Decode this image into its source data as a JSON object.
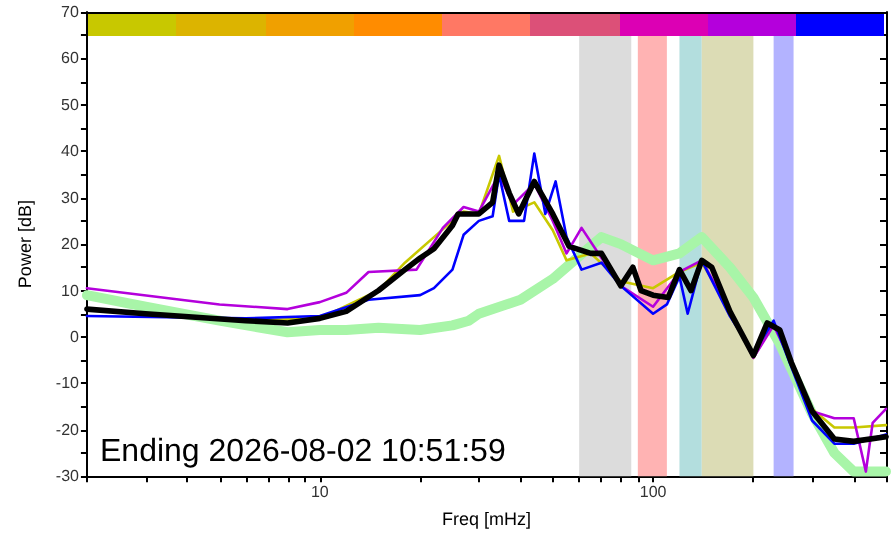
{
  "chart_data": {
    "type": "line",
    "xlabel": "Freq [mHz]",
    "ylabel": "Power [dB]",
    "log": "x",
    "xlim": [
      2,
      500
    ],
    "ylim": [
      -30,
      70
    ],
    "xticks": [
      {
        "value": 2,
        "label": null
      },
      {
        "value": 3,
        "label": null
      },
      {
        "value": 4,
        "label": null
      },
      {
        "value": 5,
        "label": null
      },
      {
        "value": 6,
        "label": null
      },
      {
        "value": 7,
        "label": null
      },
      {
        "value": 8,
        "label": null
      },
      {
        "value": 9,
        "label": null
      },
      10,
      {
        "value": 20,
        "label": null
      },
      {
        "value": 30,
        "label": null
      },
      {
        "value": 40,
        "label": null
      },
      {
        "value": 50,
        "label": null
      },
      {
        "value": 60,
        "label": null
      },
      {
        "value": 70,
        "label": null
      },
      {
        "value": 80,
        "label": null
      },
      {
        "value": 90,
        "label": null
      },
      100,
      {
        "value": 200,
        "label": null
      },
      {
        "value": 300,
        "label": null
      },
      {
        "value": 400,
        "label": null
      },
      {
        "value": 500,
        "label": null
      }
    ],
    "yticks": [
      -30,
      {
        "value": -25,
        "label": null
      },
      -20,
      {
        "value": -15,
        "label": null
      },
      -10,
      {
        "value": -5,
        "label": null
      },
      0,
      {
        "value": 5,
        "label": null
      },
      10,
      {
        "value": 15,
        "label": null
      },
      20,
      {
        "value": 25,
        "label": null
      },
      30,
      {
        "value": 35,
        "label": null
      },
      40,
      {
        "value": 45,
        "label": null
      },
      50,
      {
        "value": 55,
        "label": null
      },
      60,
      {
        "value": 65,
        "label": null
      },
      70
    ],
    "grid": false,
    "marker": "none",
    "line_style": "solid",
    "annotations": [
      "Ending 2026-08-02 10:51:59"
    ],
    "bands": [
      {
        "axis": "x",
        "from": 60,
        "to": 86,
        "color": "#dcdcdc"
      },
      {
        "axis": "x",
        "from": 90,
        "to": 110,
        "color": "#ffb3b3"
      },
      {
        "axis": "x",
        "from": 120,
        "to": 140,
        "color": "#b3dede"
      },
      {
        "axis": "x",
        "from": 140,
        "to": 200,
        "color": "#dcdcb5"
      },
      {
        "axis": "x",
        "from": 230,
        "to": 264,
        "color": "#b3b3ff"
      }
    ],
    "series": [
      {
        "color": "#a8f5a8",
        "x": [
          2,
          3,
          5,
          8,
          10,
          12,
          15,
          20,
          25,
          28,
          30,
          40,
          50,
          58,
          70,
          80,
          100,
          120,
          140,
          170,
          200,
          240,
          300,
          350,
          400,
          500
        ],
        "values": [
          9,
          6.5,
          3.5,
          1,
          1.5,
          1.5,
          2,
          1.5,
          2.5,
          3.5,
          5,
          8,
          12.5,
          16.5,
          21.5,
          20,
          16.5,
          18,
          21.5,
          15,
          8.5,
          -1.5,
          -16.5,
          -25,
          -29,
          -29
        ]
      },
      {
        "color": "#c8c800",
        "x": [
          2,
          3,
          6,
          10,
          15,
          18,
          22,
          25,
          27,
          30,
          34.5,
          38,
          44,
          50,
          55,
          65,
          80,
          100,
          120,
          140,
          170,
          200,
          230,
          260,
          300,
          350,
          400,
          500
        ],
        "values": [
          6,
          5,
          3.5,
          4,
          10,
          16,
          21.5,
          25,
          27,
          26.5,
          39,
          27,
          29,
          23,
          16.5,
          18,
          12,
          10.5,
          14,
          16,
          6,
          -4.5,
          3,
          -5.5,
          -15.5,
          -19.5,
          -19.5,
          -19
        ]
      },
      {
        "color": "#b400dc",
        "x": [
          2,
          5,
          8,
          10,
          12,
          14,
          19.5,
          23.4,
          27,
          30,
          34.5,
          38,
          44,
          50,
          55,
          61,
          70,
          80,
          100,
          120,
          140,
          170,
          200,
          230,
          260,
          300,
          350,
          400,
          435,
          456,
          500
        ],
        "values": [
          10.5,
          7,
          6,
          7.5,
          9.5,
          14,
          14.5,
          23.5,
          28,
          27,
          35,
          28.5,
          33,
          25,
          18,
          23.5,
          17,
          11,
          6.5,
          14,
          16.5,
          5.5,
          -4.5,
          2.5,
          -5.5,
          -16,
          -17.5,
          -17.5,
          -29,
          -18.5,
          -15.5
        ]
      },
      {
        "color": "#0000ff",
        "x": [
          2,
          6,
          10,
          14,
          20,
          22,
          25,
          27,
          30,
          33,
          34.5,
          37,
          41,
          44,
          47.5,
          51,
          55,
          61,
          70,
          80,
          100,
          110,
          120,
          127,
          140,
          170,
          200,
          230,
          260,
          300,
          350,
          400,
          500
        ],
        "values": [
          4.5,
          4,
          4.5,
          8,
          9,
          10.5,
          14.5,
          22,
          25,
          26,
          35,
          25,
          25,
          39.5,
          26.5,
          33.5,
          21.5,
          14.5,
          16,
          11,
          5,
          7,
          13,
          5,
          16.5,
          4.5,
          -3.5,
          3.5,
          -6.5,
          -18,
          -23,
          -23,
          -21
        ]
      },
      {
        "color": "#000000",
        "x": [
          2,
          3,
          6,
          8,
          10,
          12,
          15,
          18,
          20,
          22,
          25,
          26,
          30,
          33,
          34.5,
          37,
          39.5,
          44,
          50,
          56,
          65,
          70,
          80,
          87,
          92,
          100,
          111,
          120,
          130,
          140,
          150,
          170,
          200,
          220,
          240,
          260,
          300,
          350,
          400,
          500
        ],
        "values": [
          6,
          5,
          3.5,
          3,
          4,
          5.5,
          10,
          14.5,
          17,
          19,
          24,
          26.5,
          26.5,
          29,
          37,
          31,
          26.5,
          33.5,
          26.5,
          19.5,
          18,
          18,
          11,
          15,
          10,
          9,
          8.5,
          14.5,
          10,
          16.5,
          15,
          5.5,
          -4,
          3,
          1.5,
          -5.5,
          -16,
          -22,
          -22.5,
          -21.5
        ]
      }
    ]
  }
}
